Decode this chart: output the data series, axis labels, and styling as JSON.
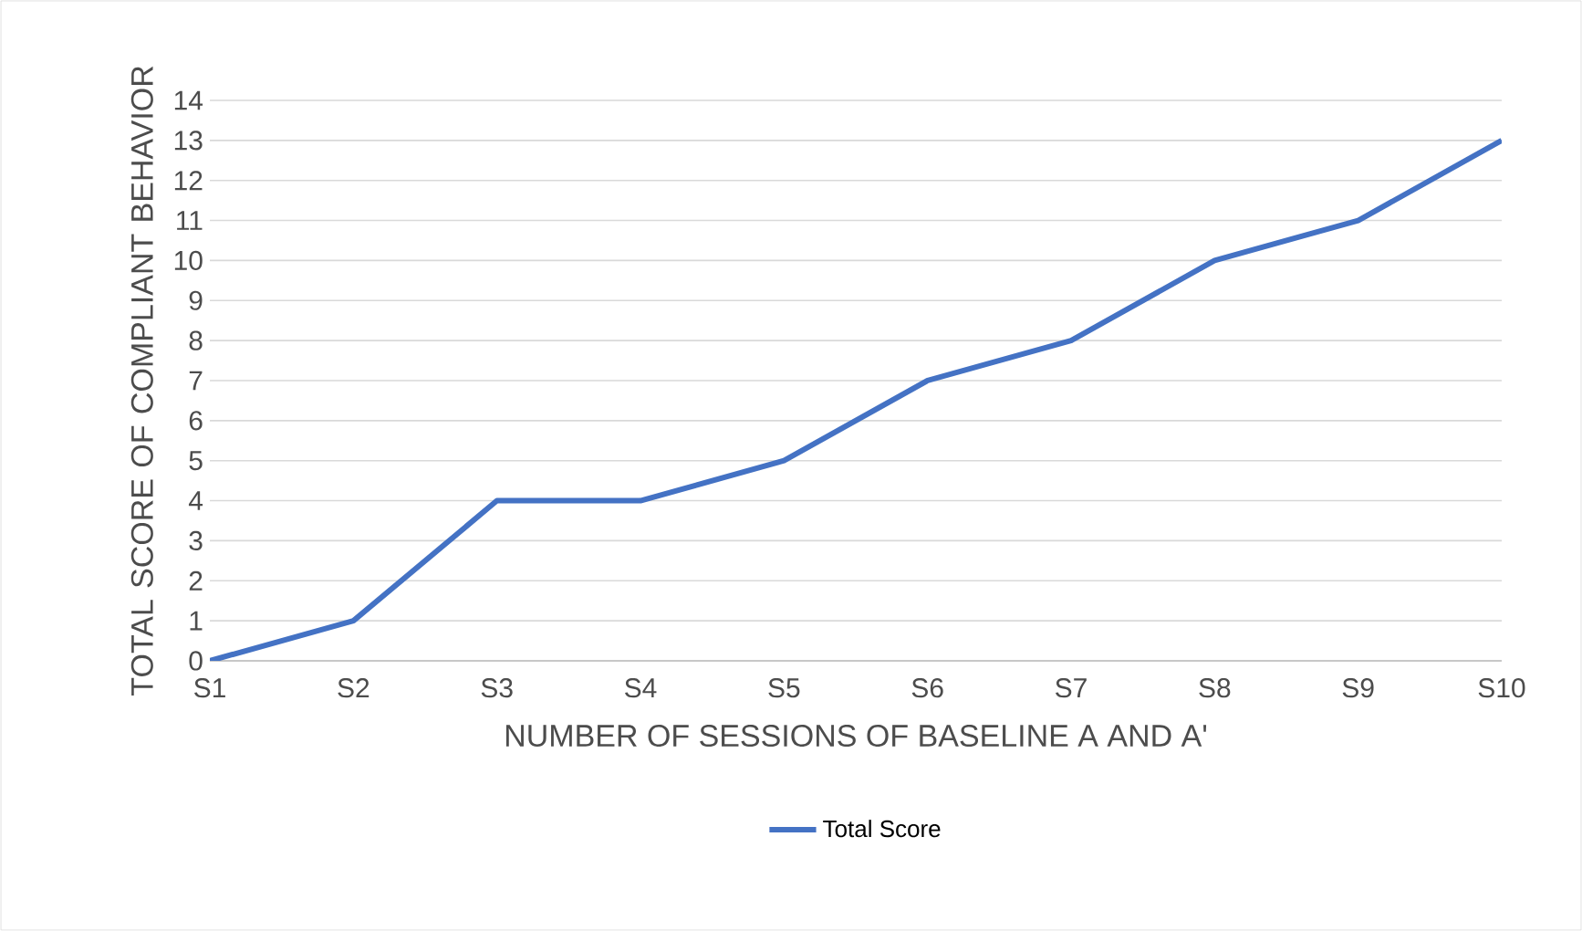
{
  "chart_data": {
    "type": "line",
    "xlabel": "NUMBER OF SESSIONS OF BASELINE A AND A'",
    "ylabel": "TOTAL SCORE OF COMPLIANT BEHAVIOR",
    "categories": [
      "S1",
      "S2",
      "S3",
      "S4",
      "S5",
      "S6",
      "S7",
      "S8",
      "S9",
      "S10"
    ],
    "series": [
      {
        "name": "Total Score",
        "color": "#4472c4",
        "values": [
          0,
          1,
          4,
          4,
          5,
          7,
          8,
          10,
          11,
          13
        ]
      }
    ],
    "ylim": [
      0,
      14
    ],
    "yticks": [
      0,
      1,
      2,
      3,
      4,
      5,
      6,
      7,
      8,
      9,
      10,
      11,
      12,
      13,
      14
    ],
    "grid": "y",
    "legend": "bottom"
  }
}
